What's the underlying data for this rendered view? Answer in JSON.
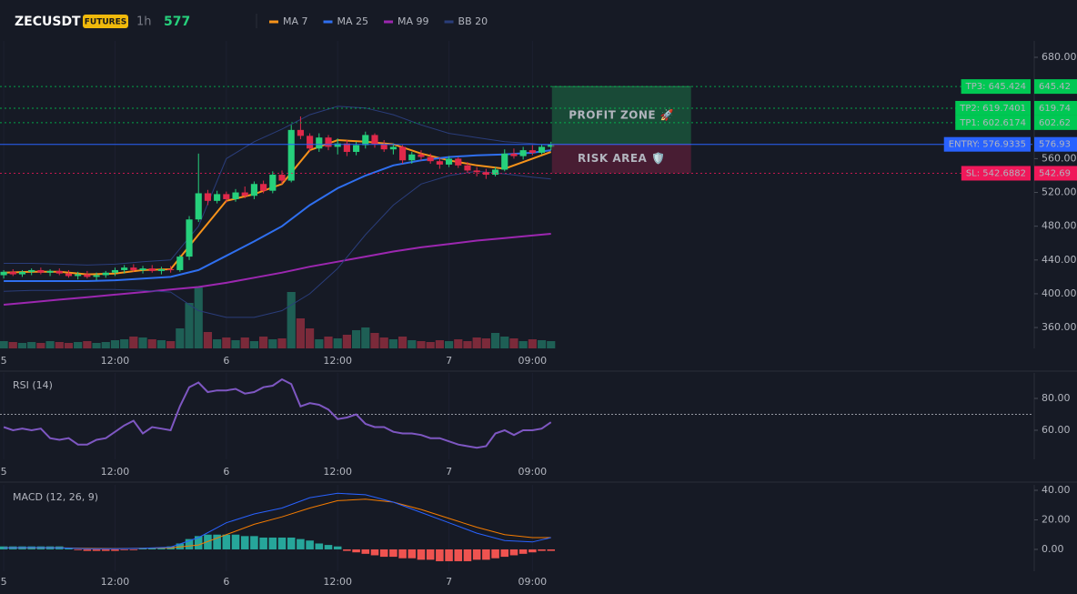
{
  "header": {
    "symbol": "ZECUSDT",
    "badge": "FUTURES",
    "interval": "1h",
    "price": 577
  },
  "chart_data": [
    {
      "type": "candlestick",
      "x": [
        0,
        1,
        2,
        3,
        4,
        5,
        6,
        7,
        8,
        9,
        10,
        11,
        12,
        13,
        14,
        15,
        16,
        17,
        18,
        19,
        20,
        21,
        22,
        23,
        24,
        25,
        26,
        27,
        28,
        29,
        30,
        31,
        32,
        33,
        34,
        35,
        36,
        37,
        38,
        39,
        40,
        41,
        42,
        43,
        44,
        45,
        46,
        47,
        48,
        49,
        50,
        51,
        52,
        53,
        54,
        55,
        56,
        57,
        58,
        59
      ],
      "open": [
        422,
        426,
        423,
        426,
        428,
        425,
        427,
        424,
        421,
        423,
        420,
        422,
        425,
        428,
        431,
        428,
        430,
        427,
        429,
        428,
        444,
        488,
        519,
        510,
        518,
        512,
        520,
        516,
        530,
        522,
        541,
        534,
        594,
        587,
        572,
        585,
        574,
        578,
        568,
        576,
        588,
        577,
        571,
        574,
        558,
        565,
        562,
        557,
        553,
        560,
        552,
        546,
        544,
        541,
        547,
        566,
        563,
        570,
        567,
        574
      ],
      "high": [
        428,
        429,
        428,
        430,
        431,
        429,
        430,
        428,
        426,
        427,
        425,
        427,
        431,
        434,
        435,
        433,
        434,
        432,
        433,
        446,
        492,
        566,
        523,
        522,
        521,
        524,
        527,
        533,
        534,
        545,
        546,
        600,
        610,
        590,
        590,
        588,
        584,
        582,
        580,
        592,
        590,
        582,
        578,
        576,
        568,
        570,
        566,
        561,
        563,
        562,
        556,
        550,
        548,
        550,
        571,
        572,
        574,
        576,
        577,
        580
      ],
      "low": [
        418,
        421,
        420,
        422,
        423,
        421,
        422,
        419,
        417,
        418,
        416,
        419,
        421,
        424,
        426,
        424,
        425,
        423,
        425,
        426,
        440,
        485,
        505,
        507,
        508,
        509,
        513,
        512,
        519,
        519,
        530,
        532,
        583,
        568,
        568,
        570,
        565,
        563,
        564,
        572,
        573,
        568,
        565,
        554,
        554,
        558,
        554,
        548,
        550,
        549,
        543,
        539,
        536,
        539,
        545,
        560,
        559,
        564,
        565,
        570
      ],
      "close": [
        426,
        423,
        426,
        428,
        425,
        427,
        424,
        421,
        423,
        420,
        422,
        425,
        428,
        431,
        428,
        430,
        427,
        429,
        428,
        444,
        488,
        519,
        510,
        518,
        512,
        520,
        516,
        530,
        522,
        541,
        534,
        594,
        587,
        572,
        585,
        574,
        578,
        568,
        576,
        588,
        577,
        571,
        574,
        558,
        565,
        562,
        557,
        553,
        560,
        552,
        546,
        544,
        541,
        547,
        566,
        563,
        570,
        567,
        574,
        577
      ],
      "up_color": "#26d07c",
      "down_color": "#e0294a",
      "volume": {
        "values": [
          8,
          7,
          6,
          7,
          6,
          8,
          7,
          6,
          7,
          8,
          6,
          7,
          9,
          10,
          13,
          12,
          10,
          9,
          8,
          22,
          50,
          67,
          18,
          10,
          12,
          9,
          12,
          8,
          13,
          10,
          11,
          62,
          33,
          22,
          10,
          13,
          11,
          15,
          20,
          23,
          17,
          12,
          10,
          13,
          9,
          8,
          7,
          9,
          8,
          10,
          8,
          12,
          11,
          17,
          13,
          11,
          8,
          10,
          9,
          8
        ],
        "up_color": "#1e5f55",
        "down_color": "#7b2a3a",
        "ylim": [
          0,
          100
        ]
      },
      "series": [
        {
          "name": "MA 7",
          "color": "#f7931a",
          "width": 2,
          "x": [
            0,
            3,
            6,
            9,
            12,
            15,
            18,
            21,
            24,
            27,
            30,
            33,
            36,
            39,
            42,
            45,
            48,
            51,
            54,
            57,
            59
          ],
          "values": [
            425,
            426,
            426,
            423,
            424,
            428,
            429,
            470,
            510,
            518,
            530,
            570,
            582,
            580,
            577,
            566,
            558,
            552,
            548,
            560,
            568
          ]
        },
        {
          "name": "MA 25",
          "color": "#2f6fef",
          "width": 2,
          "x": [
            0,
            3,
            6,
            9,
            12,
            15,
            18,
            21,
            24,
            27,
            30,
            33,
            36,
            39,
            42,
            45,
            48,
            51,
            54,
            57,
            59
          ],
          "values": [
            415,
            415,
            415,
            415,
            416,
            418,
            420,
            428,
            445,
            462,
            480,
            505,
            525,
            540,
            552,
            558,
            562,
            564,
            565,
            567,
            570
          ]
        },
        {
          "name": "MA 99",
          "color": "#9c27b0",
          "width": 2,
          "x": [
            0,
            3,
            6,
            9,
            12,
            15,
            18,
            21,
            24,
            27,
            30,
            33,
            36,
            39,
            42,
            45,
            48,
            51,
            54,
            57,
            59
          ],
          "values": [
            387,
            390,
            393,
            396,
            399,
            402,
            405,
            408,
            413,
            419,
            425,
            432,
            438,
            444,
            450,
            455,
            459,
            463,
            466,
            469,
            471
          ]
        },
        {
          "name": "BB 20",
          "color": "#2a3d7a",
          "width": 1,
          "x": [
            0,
            3,
            6,
            9,
            12,
            15,
            18,
            21,
            24,
            27,
            30,
            33,
            36,
            39,
            42,
            45,
            48,
            51,
            54,
            57,
            59
          ],
          "values": [
            436,
            436,
            435,
            434,
            435,
            438,
            440,
            480,
            560,
            580,
            595,
            612,
            622,
            620,
            612,
            600,
            590,
            585,
            580,
            578,
            575
          ],
          "lower": [
            403,
            404,
            404,
            405,
            405,
            404,
            402,
            380,
            372,
            372,
            380,
            400,
            430,
            470,
            505,
            530,
            540,
            545,
            542,
            538,
            536
          ]
        }
      ],
      "levels": [
        {
          "value": 645.424,
          "label": "TP3: 645.424",
          "axis_label": "645.42",
          "color": "#00c853",
          "text_color": "#0b1a10",
          "dash": true
        },
        {
          "value": 619.7401,
          "label": "TP2: 619.7401",
          "axis_label": "619.74",
          "color": "#00c853",
          "text_color": "#0b1a10",
          "dash": true
        },
        {
          "value": 602.6174,
          "label": "TP1: 602.6174",
          "axis_label": "602.62",
          "color": "#00c853",
          "text_color": "#0b1a10",
          "dash": true
        },
        {
          "value": 576.9335,
          "label": "ENTRY: 576.9335",
          "axis_label": "576.93",
          "color": "#2962ff",
          "text_color": "#ffffff",
          "dash": false
        },
        {
          "value": 542.6882,
          "label": "SL: 542.6882",
          "axis_label": "542.69",
          "color": "#f0185a",
          "text_color": "#ffffff",
          "dash": true
        }
      ],
      "zones": [
        {
          "label": "PROFIT ZONE 🚀",
          "x": [
            59.1,
            74.1
          ],
          "from": 576.9335,
          "to": 645.424,
          "color": "#1d6b45",
          "text_color": "#2ecc71"
        },
        {
          "label": "RISK AREA 🛡️",
          "x": [
            59.1,
            74.1
          ],
          "from": 542.6882,
          "to": 576.9335,
          "color": "#6b1f3d",
          "text_color": "#e91e63"
        }
      ],
      "xlim": [
        -0.4,
        110.9
      ],
      "ylim": [
        335.3,
        699.4
      ],
      "xticks": [
        {
          "value": 0,
          "label": "5"
        },
        {
          "value": 12,
          "label": "12:00"
        },
        {
          "value": 24,
          "label": "6"
        },
        {
          "value": 36,
          "label": "12:00"
        },
        {
          "value": 48,
          "label": "7"
        },
        {
          "value": 57,
          "label": "09:00"
        }
      ],
      "yticks": [
        {
          "value": 680,
          "label": "680.00"
        },
        {
          "value": 560,
          "label": "560.00"
        },
        {
          "value": 520,
          "label": "520.00"
        },
        {
          "value": 480,
          "label": "480.00"
        },
        {
          "value": 440,
          "label": "440.00"
        },
        {
          "value": 400,
          "label": "400.00"
        },
        {
          "value": 360,
          "label": "360.00"
        }
      ]
    },
    {
      "type": "line",
      "title": "RSI (14)",
      "color": "#7e57c2",
      "x": [
        0,
        1,
        2,
        3,
        4,
        5,
        6,
        7,
        8,
        9,
        10,
        11,
        12,
        13,
        14,
        15,
        16,
        17,
        18,
        19,
        20,
        21,
        22,
        23,
        24,
        25,
        26,
        27,
        28,
        29,
        30,
        31,
        32,
        33,
        34,
        35,
        36,
        37,
        38,
        39,
        40,
        41,
        42,
        43,
        44,
        45,
        46,
        47,
        48,
        49,
        50,
        51,
        52,
        53,
        54,
        55,
        56,
        57,
        58,
        59
      ],
      "values": [
        62,
        60,
        61,
        60,
        61,
        55,
        54,
        55,
        51,
        51,
        54,
        55,
        59,
        63,
        66,
        58,
        62,
        61,
        60,
        75,
        87,
        90,
        84,
        85,
        85,
        86,
        83,
        84,
        87,
        88,
        92,
        89,
        75,
        77,
        76,
        73,
        67,
        68,
        70,
        64,
        62,
        62,
        59,
        58,
        58,
        57,
        55,
        55,
        53,
        51,
        50,
        49,
        50,
        58,
        60,
        57,
        60,
        60,
        61,
        65
      ],
      "reference": 70,
      "xlim": [
        -0.4,
        110.9
      ],
      "ylim": [
        41.7,
        96
      ],
      "xticks": [
        {
          "value": 0,
          "label": "5"
        },
        {
          "value": 12,
          "label": "12:00"
        },
        {
          "value": 24,
          "label": "6"
        },
        {
          "value": 36,
          "label": "12:00"
        },
        {
          "value": 48,
          "label": "7"
        },
        {
          "value": 57,
          "label": "09:00"
        }
      ],
      "yticks": [
        {
          "value": 80,
          "label": "80.00"
        },
        {
          "value": 60,
          "label": "60.00"
        }
      ]
    },
    {
      "type": "macd",
      "title": "MACD (12, 26, 9)",
      "x": [
        0,
        3,
        6,
        9,
        12,
        15,
        18,
        21,
        24,
        27,
        30,
        33,
        36,
        39,
        42,
        45,
        48,
        51,
        54,
        57,
        59
      ],
      "macd": {
        "color": "#2962ff",
        "values": [
          1,
          1.2,
          1,
          0.5,
          0.5,
          0.8,
          1.5,
          8,
          18,
          24,
          28,
          35,
          38,
          37,
          32,
          25,
          18,
          11,
          6,
          5,
          8
        ]
      },
      "signal": {
        "color": "#f57c00",
        "values": [
          1,
          1,
          1,
          0.8,
          0.6,
          0.7,
          1,
          3,
          10,
          17,
          22,
          28,
          33,
          34,
          32,
          27,
          21,
          15,
          10,
          8,
          8
        ]
      },
      "histogram": {
        "x": [
          0,
          1,
          2,
          3,
          4,
          5,
          6,
          7,
          8,
          9,
          10,
          11,
          12,
          13,
          14,
          15,
          16,
          17,
          18,
          19,
          20,
          21,
          22,
          23,
          24,
          25,
          26,
          27,
          28,
          29,
          30,
          31,
          32,
          33,
          34,
          35,
          36,
          37,
          38,
          39,
          40,
          41,
          42,
          43,
          44,
          45,
          46,
          47,
          48,
          49,
          50,
          51,
          52,
          53,
          54,
          55,
          56,
          57,
          58,
          59
        ],
        "values": [
          2,
          2,
          2,
          2,
          2,
          2,
          2,
          1,
          -0.5,
          -1,
          -1,
          -1,
          -1,
          -0.5,
          -0.5,
          1,
          1,
          1,
          2,
          4,
          7,
          9,
          10,
          10,
          10,
          10,
          9,
          9,
          8,
          8,
          8,
          8,
          7,
          6,
          4,
          3,
          2,
          -1,
          -2,
          -3,
          -4,
          -5,
          -5,
          -6,
          -6,
          -7,
          -7,
          -8,
          -8,
          -8,
          -8,
          -7,
          -7,
          -6,
          -5,
          -4,
          -3,
          -2,
          -1,
          -1
        ],
        "up_color": "#26a69a",
        "down_color": "#ef5350"
      },
      "xlim": [
        -0.4,
        110.9
      ],
      "ylim": [
        -14.8,
        43.7
      ],
      "xticks": [
        {
          "value": 0,
          "label": "5"
        },
        {
          "value": 12,
          "label": "12:00"
        },
        {
          "value": 24,
          "label": "6"
        },
        {
          "value": 36,
          "label": "12:00"
        },
        {
          "value": 48,
          "label": "7"
        },
        {
          "value": 57,
          "label": "09:00"
        }
      ],
      "yticks": [
        {
          "value": 40,
          "label": "40.00"
        },
        {
          "value": 20,
          "label": "20.00"
        },
        {
          "value": 0,
          "label": "0.00"
        }
      ]
    }
  ]
}
